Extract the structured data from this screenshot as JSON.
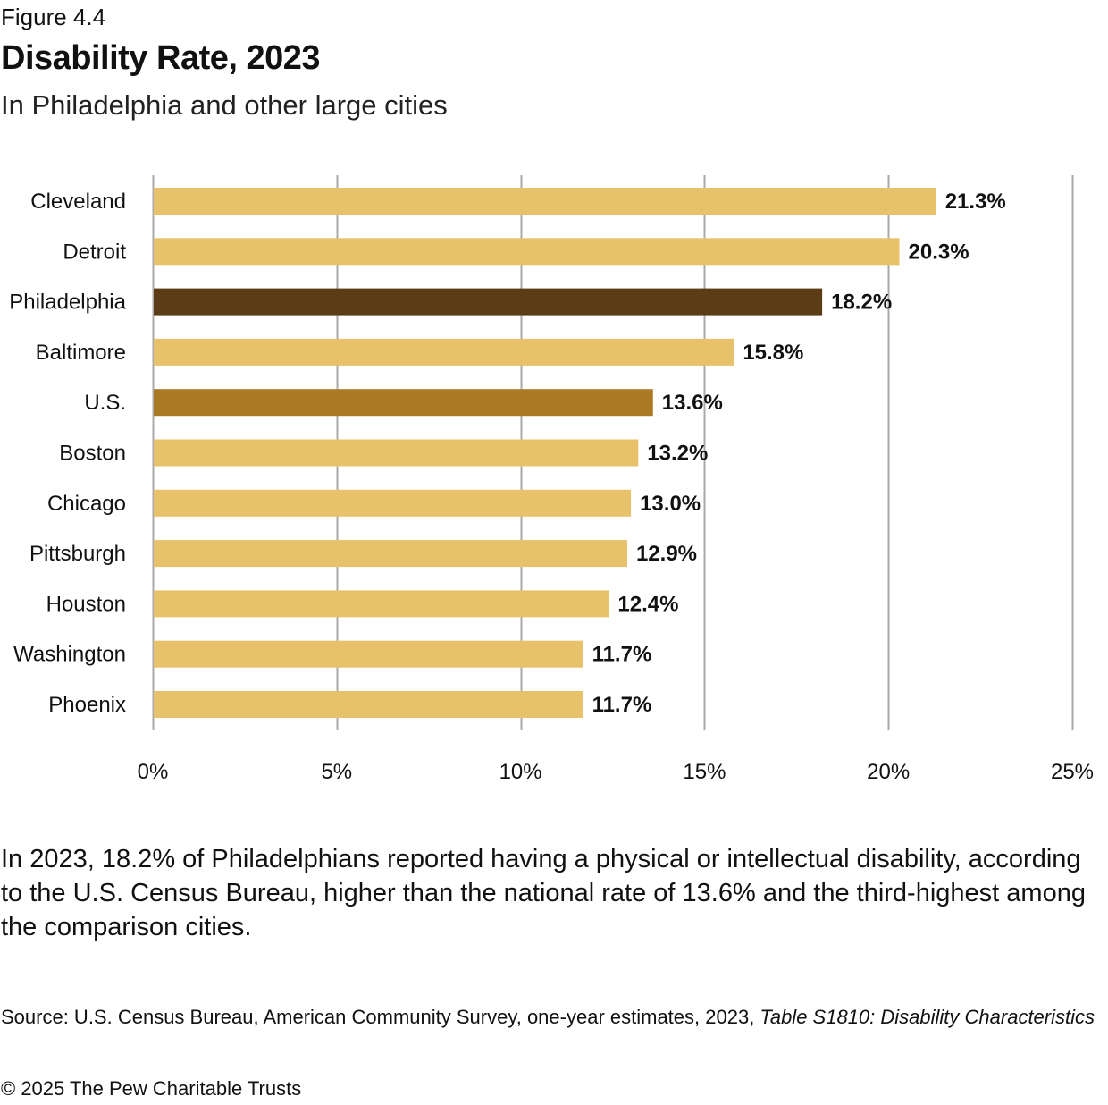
{
  "figure_label": "Figure 4.4",
  "title": "Disability Rate, 2023",
  "subtitle": "In Philadelphia and other large cities",
  "colors": {
    "default_bar": "#E8C26B",
    "philadelphia_bar": "#5C3C17",
    "us_bar": "#AB7A24",
    "gridline": "#AAAAAA"
  },
  "chart_data": {
    "type": "bar",
    "orientation": "horizontal",
    "title": "Disability Rate, 2023",
    "subtitle": "In Philadelphia and other large cities",
    "xlabel": "",
    "ylabel": "",
    "categories": [
      "Cleveland",
      "Detroit",
      "Philadelphia",
      "Baltimore",
      "U.S.",
      "Boston",
      "Chicago",
      "Pittsburgh",
      "Houston",
      "Washington",
      "Phoenix"
    ],
    "values": [
      21.3,
      20.3,
      18.2,
      15.8,
      13.6,
      13.2,
      13.0,
      12.9,
      12.4,
      11.7,
      11.7
    ],
    "value_labels": [
      "21.3%",
      "20.3%",
      "18.2%",
      "15.8%",
      "13.6%",
      "13.2%",
      "13.0%",
      "12.9%",
      "12.4%",
      "11.7%",
      "11.7%"
    ],
    "highlight": {
      "Philadelphia": "philadelphia_bar",
      "U.S.": "us_bar"
    },
    "xlim": [
      0,
      25
    ],
    "xticks": [
      0,
      5,
      10,
      15,
      20,
      25
    ],
    "xtick_labels": [
      "0%",
      "5%",
      "10%",
      "15%",
      "20%",
      "25%"
    ],
    "grid": "vertical",
    "legend": "none"
  },
  "description": "In 2023, 18.2% of Philadelphians reported having a physical or intellectual disability, according to the U.S. Census Bureau, higher than the national rate of 13.6% and the third-highest among the comparison cities.",
  "source": {
    "prefix": "Source: U.S. Census Bureau, American Community Survey, one-year estimates, 2023, ",
    "italic": "Table S1810: Disability Characteristics"
  },
  "copyright": "© 2025 The Pew Charitable Trusts"
}
